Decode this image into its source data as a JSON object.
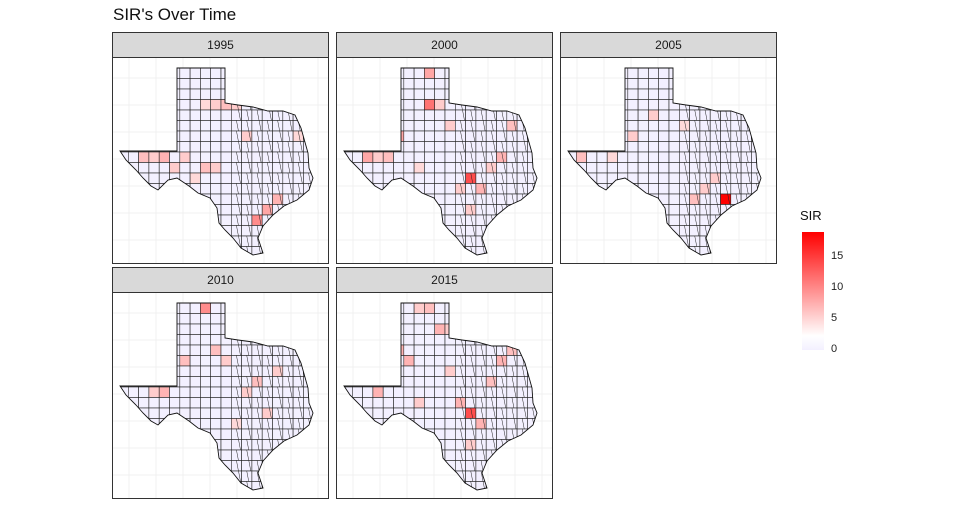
{
  "title": "SIR's Over Time",
  "panels": [
    {
      "year": "1995",
      "highlights": [
        [
          10,
          3,
          0.25
        ],
        [
          9,
          3,
          0.2
        ],
        [
          11,
          3,
          0.2
        ],
        [
          8,
          3,
          0.15
        ],
        [
          3,
          8,
          0.2
        ],
        [
          2,
          8,
          0.25
        ],
        [
          4,
          8,
          0.3
        ],
        [
          5,
          9,
          0.2
        ],
        [
          8,
          9,
          0.25
        ],
        [
          9,
          9,
          0.2
        ],
        [
          15,
          12,
          0.3
        ],
        [
          14,
          13,
          0.35
        ],
        [
          13,
          14,
          0.45
        ],
        [
          7,
          10,
          0.15
        ],
        [
          6,
          8,
          0.2
        ],
        [
          12,
          6,
          0.2
        ],
        [
          17,
          6,
          0.15
        ]
      ]
    },
    {
      "year": "2000",
      "highlights": [
        [
          8,
          0,
          0.35
        ],
        [
          11,
          0,
          0.2
        ],
        [
          8,
          3,
          0.55
        ],
        [
          9,
          3,
          0.2
        ],
        [
          5,
          6,
          0.35
        ],
        [
          3,
          8,
          0.2
        ],
        [
          2,
          8,
          0.35
        ],
        [
          4,
          8,
          0.25
        ],
        [
          12,
          10,
          0.7
        ],
        [
          13,
          11,
          0.3
        ],
        [
          11,
          11,
          0.2
        ],
        [
          15,
          8,
          0.3
        ],
        [
          14,
          9,
          0.2
        ],
        [
          16,
          5,
          0.25
        ],
        [
          10,
          5,
          0.2
        ],
        [
          7,
          9,
          0.15
        ],
        [
          12,
          13,
          0.2
        ]
      ]
    },
    {
      "year": "2005",
      "highlights": [
        [
          3,
          7,
          0.25
        ],
        [
          2,
          7,
          0.3
        ],
        [
          1,
          8,
          0.25
        ],
        [
          4,
          8,
          0.15
        ],
        [
          6,
          6,
          0.2
        ],
        [
          15,
          12,
          1.0
        ],
        [
          12,
          12,
          0.25
        ],
        [
          13,
          11,
          0.2
        ],
        [
          8,
          4,
          0.2
        ],
        [
          11,
          5,
          0.15
        ],
        [
          16,
          3,
          0.2
        ],
        [
          14,
          10,
          0.2
        ]
      ]
    },
    {
      "year": "2010",
      "highlights": [
        [
          8,
          0,
          0.45
        ],
        [
          9,
          4,
          0.25
        ],
        [
          6,
          5,
          0.25
        ],
        [
          4,
          8,
          0.3
        ],
        [
          3,
          8,
          0.2
        ],
        [
          10,
          5,
          0.2
        ],
        [
          12,
          8,
          0.2
        ],
        [
          13,
          7,
          0.25
        ],
        [
          15,
          6,
          0.2
        ],
        [
          16,
          3,
          0.2
        ],
        [
          11,
          11,
          0.15
        ],
        [
          14,
          10,
          0.2
        ]
      ]
    },
    {
      "year": "2015",
      "highlights": [
        [
          8,
          0,
          0.25
        ],
        [
          7,
          0,
          0.2
        ],
        [
          9,
          2,
          0.3
        ],
        [
          10,
          2,
          0.2
        ],
        [
          5,
          4,
          0.3
        ],
        [
          6,
          5,
          0.3
        ],
        [
          4,
          6,
          0.25
        ],
        [
          12,
          10,
          0.7
        ],
        [
          13,
          11,
          0.3
        ],
        [
          11,
          9,
          0.3
        ],
        [
          3,
          8,
          0.3
        ],
        [
          14,
          7,
          0.25
        ],
        [
          15,
          5,
          0.3
        ],
        [
          16,
          4,
          0.25
        ],
        [
          10,
          6,
          0.2
        ],
        [
          12,
          13,
          0.2
        ],
        [
          7,
          9,
          0.2
        ]
      ]
    }
  ],
  "legend": {
    "title": "SIR",
    "ticks": [
      {
        "value": 15,
        "label": "15"
      },
      {
        "value": 10,
        "label": "10"
      },
      {
        "value": 5,
        "label": "5"
      },
      {
        "value": 0,
        "label": "0"
      }
    ],
    "min": 0,
    "max": 19,
    "low_color": "#f3f0ff",
    "mid_color": "#ffffff",
    "high_color": "#ff0000"
  }
}
